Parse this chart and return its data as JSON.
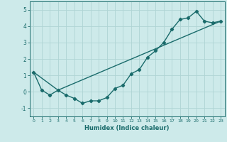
{
  "line1_x": [
    0,
    1,
    2,
    3,
    4,
    5,
    6,
    7,
    8,
    9,
    10,
    11,
    12,
    13,
    14,
    15,
    16,
    17,
    18,
    19,
    20,
    21,
    22,
    23
  ],
  "line1_y": [
    1.2,
    0.1,
    -0.2,
    0.1,
    -0.2,
    -0.4,
    -0.7,
    -0.55,
    -0.55,
    -0.35,
    0.2,
    0.4,
    1.1,
    1.35,
    2.1,
    2.5,
    3.0,
    3.8,
    4.4,
    4.5,
    4.9,
    4.3,
    4.2,
    4.3
  ],
  "line2_x": [
    0,
    3,
    23
  ],
  "line2_y": [
    1.2,
    0.1,
    4.3
  ],
  "color": "#1a6b6b",
  "bg_color": "#cdeaea",
  "grid_color": "#afd4d4",
  "xlabel": "Humidex (Indice chaleur)",
  "ylim": [
    -1.5,
    5.5
  ],
  "xlim": [
    -0.5,
    23.5
  ],
  "yticks": [
    -1,
    0,
    1,
    2,
    3,
    4,
    5
  ],
  "xticks": [
    0,
    1,
    2,
    3,
    4,
    5,
    6,
    7,
    8,
    9,
    10,
    11,
    12,
    13,
    14,
    15,
    16,
    17,
    18,
    19,
    20,
    21,
    22,
    23
  ],
  "xtick_labels": [
    "0",
    "1",
    "2",
    "3",
    "4",
    "5",
    "6",
    "7",
    "8",
    "9",
    "10",
    "11",
    "12",
    "13",
    "14",
    "15",
    "16",
    "17",
    "18",
    "19",
    "20",
    "21",
    "22",
    "23"
  ],
  "marker": "D",
  "markersize": 2.2,
  "linewidth": 1.0
}
